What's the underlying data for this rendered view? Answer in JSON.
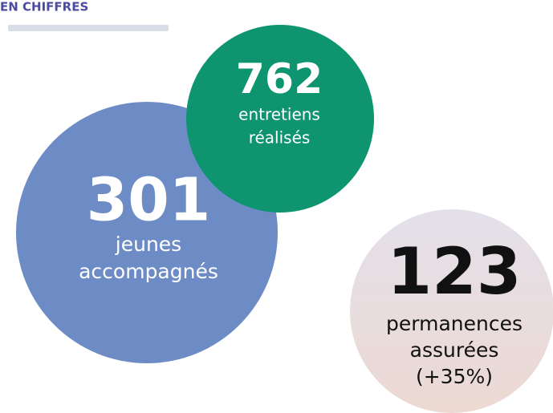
{
  "header": {
    "title": "EN CHIFFRES"
  },
  "stats": [
    {
      "number": 301,
      "lines": [
        "jeunes",
        "accompagnés"
      ]
    },
    {
      "number": 762,
      "lines": [
        "entretiens",
        "réalisés"
      ]
    },
    {
      "number": 123,
      "lines": [
        "permanences",
        "assurées",
        "(+35%)"
      ]
    }
  ]
}
